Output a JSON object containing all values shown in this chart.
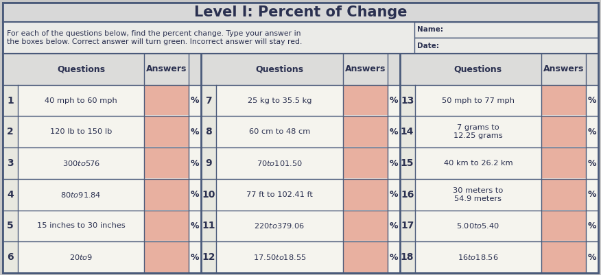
{
  "title": "Level I: Percent of Change",
  "instructions": "For each of the questions below, find the percent change. Type your answer in\nthe boxes below. Correct answer will turn green. Incorrect answer will stay red.",
  "name_label": "Name:",
  "date_label": "Date:",
  "bg_color": "#c8c8c8",
  "table_outer_bg": "#f0efe8",
  "title_bg": "#d8d8d8",
  "instr_bg": "#ebebE8",
  "header_row_bg": "#dcdcda",
  "row_bg": "#f5f4ee",
  "answer_bg": "#e8b0a0",
  "num_bg": "#e8e8e0",
  "border_color": "#4a5a7a",
  "text_color": "#2a3050",
  "col1_questions": [
    "40 mph to 60 mph",
    "120 lb to 150 lb",
    "$300 to $576",
    "$80 to $91.84",
    "15 inches to 30 inches",
    "$20 to $9"
  ],
  "col1_nums": [
    "1",
    "2",
    "3",
    "4",
    "5",
    "6"
  ],
  "col2_questions": [
    "25 kg to 35.5 kg",
    "60 cm to 48 cm",
    "$70 to $101.50",
    "77 ft to 102.41 ft",
    "$220 to $379.06",
    "$17.50 to $18.55"
  ],
  "col2_nums": [
    "7",
    "8",
    "9",
    "10",
    "11",
    "12"
  ],
  "col3_questions": [
    "50 mph to 77 mph",
    "7 grams to\n12.25 grams",
    "40 km to 26.2 km",
    "30 meters to\n54.9 meters",
    "$5.00 to $5.40",
    "$16 to $18.56"
  ],
  "col3_nums": [
    "13",
    "14",
    "15",
    "16",
    "17",
    "18"
  ]
}
